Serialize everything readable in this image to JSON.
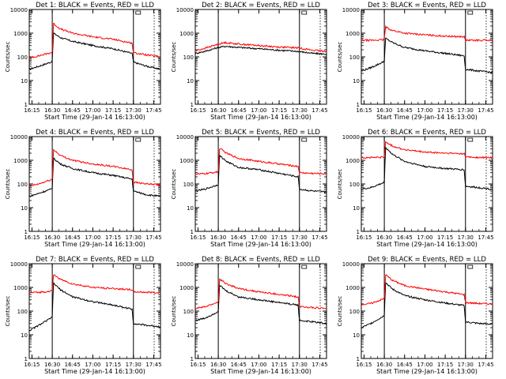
{
  "colors": {
    "events": "#000000",
    "lld": "#ff0000",
    "axes": "#000000",
    "background": "#ffffff"
  },
  "chart_data": [
    {
      "type": "line",
      "title": "Det 1: BLACK = Events, RED = LLD",
      "xlabel": "Start Time (29-Jan-14 16:13:00)",
      "ylabel": "Counts/sec",
      "x_ticks": [
        "16:15",
        "16:30",
        "16:45",
        "17:00",
        "17:15",
        "17:30",
        "17:45"
      ],
      "y_ticks": [
        "1",
        "10",
        "100",
        "1000",
        "10000"
      ],
      "ylim": [
        1,
        10000
      ],
      "yscale": "log",
      "grid": false,
      "vertical_markers": [
        "16:30",
        "17:30"
      ],
      "series": [
        {
          "name": "BLACK = Events",
          "color": "#000000",
          "x": [
            "16:13",
            "16:20",
            "16:29",
            "16:30",
            "16:31",
            "16:36",
            "16:45",
            "17:00",
            "17:15",
            "17:29",
            "17:30",
            "17:40",
            "17:50"
          ],
          "y": [
            30,
            40,
            60,
            70,
            1000,
            650,
            450,
            300,
            220,
            140,
            60,
            40,
            30
          ]
        },
        {
          "name": "RED = LLD",
          "color": "#ff0000",
          "x": [
            "16:13",
            "16:20",
            "16:29",
            "16:30",
            "16:31",
            "16:36",
            "16:45",
            "17:00",
            "17:15",
            "17:29",
            "17:30",
            "17:40",
            "17:50"
          ],
          "y": [
            90,
            110,
            150,
            160,
            2500,
            1500,
            1000,
            700,
            550,
            380,
            150,
            120,
            100
          ]
        }
      ]
    },
    {
      "type": "line",
      "title": "Det 2: BLACK = Events, RED = LLD",
      "xlabel": "Start Time (29-Jan-14 16:13:00)",
      "ylabel": "Counts/sec",
      "x_ticks": [
        "16:15",
        "16:30",
        "16:45",
        "17:00",
        "17:15",
        "17:30",
        "17:45"
      ],
      "y_ticks": [
        "1",
        "10",
        "100",
        "1000",
        "10000"
      ],
      "ylim": [
        1,
        10000
      ],
      "yscale": "log",
      "grid": false,
      "vertical_markers": [
        "16:30",
        "17:30"
      ],
      "series": [
        {
          "name": "BLACK = Events",
          "color": "#000000",
          "x": [
            "16:13",
            "16:20",
            "16:29",
            "16:35",
            "16:45",
            "17:00",
            "17:15",
            "17:29",
            "17:40",
            "17:50"
          ],
          "y": [
            140,
            170,
            240,
            280,
            250,
            220,
            190,
            170,
            140,
            130
          ]
        },
        {
          "name": "RED = LLD",
          "color": "#ff0000",
          "x": [
            "16:13",
            "16:20",
            "16:29",
            "16:35",
            "16:45",
            "17:00",
            "17:15",
            "17:29",
            "17:40",
            "17:50"
          ],
          "y": [
            180,
            230,
            330,
            400,
            350,
            300,
            260,
            240,
            190,
            170
          ]
        }
      ]
    },
    {
      "type": "line",
      "title": "Det 3: BLACK = Events, RED = LLD",
      "xlabel": "Start Time (29-Jan-14 16:13:00)",
      "ylabel": "Counts/sec",
      "x_ticks": [
        "16:15",
        "16:30",
        "16:45",
        "17:00",
        "17:15",
        "17:30",
        "17:45"
      ],
      "y_ticks": [
        "1",
        "10",
        "100",
        "1000",
        "10000"
      ],
      "ylim": [
        1,
        10000
      ],
      "yscale": "log",
      "grid": false,
      "vertical_markers": [
        "16:30",
        "17:30"
      ],
      "series": [
        {
          "name": "BLACK = Events",
          "color": "#000000",
          "x": [
            "16:13",
            "16:20",
            "16:29",
            "16:30",
            "16:31",
            "16:36",
            "16:45",
            "17:00",
            "17:15",
            "17:29",
            "17:30",
            "17:40",
            "17:50"
          ],
          "y": [
            25,
            35,
            60,
            70,
            600,
            400,
            250,
            180,
            140,
            110,
            30,
            25,
            22
          ]
        },
        {
          "name": "RED = LLD",
          "color": "#ff0000",
          "x": [
            "16:13",
            "16:20",
            "16:29",
            "16:30",
            "16:31",
            "16:36",
            "16:45",
            "17:00",
            "17:15",
            "17:29",
            "17:30",
            "17:40",
            "17:50"
          ],
          "y": [
            500,
            500,
            520,
            600,
            1800,
            1300,
            1000,
            850,
            750,
            700,
            500,
            500,
            500
          ]
        }
      ]
    },
    {
      "type": "line",
      "title": "Det 4: BLACK = Events, RED = LLD",
      "xlabel": "Start Time (29-Jan-14 16:13:00)",
      "ylabel": "Counts/sec",
      "x_ticks": [
        "16:15",
        "16:30",
        "16:45",
        "17:00",
        "17:15",
        "17:30",
        "17:45"
      ],
      "y_ticks": [
        "1",
        "10",
        "100",
        "1000",
        "10000"
      ],
      "ylim": [
        1,
        10000
      ],
      "yscale": "log",
      "grid": false,
      "vertical_markers": [
        "16:30",
        "17:30"
      ],
      "series": [
        {
          "name": "BLACK = Events",
          "color": "#000000",
          "x": [
            "16:13",
            "16:20",
            "16:29",
            "16:30",
            "16:31",
            "16:36",
            "16:45",
            "17:00",
            "17:15",
            "17:29",
            "17:30",
            "17:40",
            "17:50"
          ],
          "y": [
            30,
            40,
            60,
            70,
            1200,
            700,
            450,
            300,
            230,
            160,
            50,
            35,
            30
          ]
        },
        {
          "name": "RED = LLD",
          "color": "#ff0000",
          "x": [
            "16:13",
            "16:20",
            "16:29",
            "16:30",
            "16:31",
            "16:36",
            "16:45",
            "17:00",
            "17:15",
            "17:29",
            "17:30",
            "17:40",
            "17:50"
          ],
          "y": [
            80,
            100,
            150,
            160,
            2800,
            1600,
            1000,
            700,
            550,
            400,
            120,
            100,
            90
          ]
        }
      ]
    },
    {
      "type": "line",
      "title": "Det 5: BLACK = Events, RED = LLD",
      "xlabel": "Start Time (29-Jan-14 16:13:00)",
      "ylabel": "Counts/sec",
      "x_ticks": [
        "16:15",
        "16:30",
        "16:45",
        "17:00",
        "17:15",
        "17:30",
        "17:45"
      ],
      "y_ticks": [
        "1",
        "10",
        "100",
        "1000",
        "10000"
      ],
      "ylim": [
        1,
        10000
      ],
      "yscale": "log",
      "grid": false,
      "vertical_markers": [
        "16:30",
        "17:30"
      ],
      "series": [
        {
          "name": "BLACK = Events",
          "color": "#000000",
          "x": [
            "16:13",
            "16:20",
            "16:29",
            "16:30",
            "16:31",
            "16:36",
            "16:45",
            "17:00",
            "17:15",
            "17:29",
            "17:30",
            "17:40",
            "17:50"
          ],
          "y": [
            50,
            60,
            90,
            100,
            1600,
            900,
            500,
            400,
            280,
            200,
            60,
            50,
            45
          ]
        },
        {
          "name": "RED = LLD",
          "color": "#ff0000",
          "x": [
            "16:13",
            "16:20",
            "16:29",
            "16:30",
            "16:31",
            "16:36",
            "16:45",
            "17:00",
            "17:15",
            "17:29",
            "17:30",
            "17:40",
            "17:50"
          ],
          "y": [
            260,
            270,
            320,
            350,
            3200,
            2000,
            1200,
            900,
            700,
            550,
            300,
            280,
            270
          ]
        }
      ]
    },
    {
      "type": "line",
      "title": "Det 6: BLACK = Events, RED = LLD",
      "xlabel": "Start Time (29-Jan-14 16:13:00)",
      "ylabel": "Counts/sec",
      "x_ticks": [
        "16:15",
        "16:30",
        "16:45",
        "17:00",
        "17:15",
        "17:30",
        "17:45"
      ],
      "y_ticks": [
        "1",
        "10",
        "100",
        "1000",
        "10000"
      ],
      "ylim": [
        1,
        10000
      ],
      "yscale": "log",
      "grid": false,
      "vertical_markers": [
        "16:30",
        "17:30"
      ],
      "series": [
        {
          "name": "BLACK = Events",
          "color": "#000000",
          "x": [
            "16:13",
            "16:20",
            "16:29",
            "16:30",
            "16:31",
            "16:36",
            "16:45",
            "17:00",
            "17:15",
            "17:29",
            "17:30",
            "17:40",
            "17:50"
          ],
          "y": [
            60,
            70,
            110,
            120,
            3500,
            1800,
            900,
            550,
            450,
            400,
            80,
            70,
            60
          ]
        },
        {
          "name": "RED = LLD",
          "color": "#ff0000",
          "x": [
            "16:13",
            "16:20",
            "16:29",
            "16:30",
            "16:31",
            "16:36",
            "16:45",
            "17:00",
            "17:15",
            "17:29",
            "17:30",
            "17:40",
            "17:50"
          ],
          "y": [
            1300,
            1300,
            1350,
            1400,
            6000,
            4000,
            2800,
            2200,
            2000,
            1900,
            1400,
            1300,
            1300
          ]
        }
      ]
    },
    {
      "type": "line",
      "title": "Det 7: BLACK = Events, RED = LLD",
      "xlabel": "Start Time (29-Jan-14 16:13:00)",
      "ylabel": "Counts/sec",
      "x_ticks": [
        "16:15",
        "16:30",
        "16:45",
        "17:00",
        "17:15",
        "17:30",
        "17:45"
      ],
      "y_ticks": [
        "1",
        "10",
        "100",
        "1000",
        "10000"
      ],
      "ylim": [
        1,
        10000
      ],
      "yscale": "log",
      "grid": false,
      "vertical_markers": [
        "16:30",
        "17:30"
      ],
      "series": [
        {
          "name": "BLACK = Events",
          "color": "#000000",
          "x": [
            "16:13",
            "16:20",
            "16:29",
            "16:30",
            "16:31",
            "16:36",
            "16:45",
            "17:00",
            "17:15",
            "17:29",
            "17:30",
            "17:40",
            "17:50"
          ],
          "y": [
            15,
            25,
            50,
            60,
            1500,
            800,
            400,
            250,
            180,
            120,
            30,
            25,
            22
          ]
        },
        {
          "name": "RED = LLD",
          "color": "#ff0000",
          "x": [
            "16:13",
            "16:20",
            "16:29",
            "16:30",
            "16:31",
            "16:36",
            "16:45",
            "17:00",
            "17:15",
            "17:29",
            "17:30",
            "17:40",
            "17:50"
          ],
          "y": [
            600,
            620,
            700,
            750,
            3500,
            2200,
            1400,
            1000,
            900,
            800,
            650,
            620,
            600
          ]
        }
      ]
    },
    {
      "type": "line",
      "title": "Det 8: BLACK = Events, RED = LLD",
      "xlabel": "Start Time (29-Jan-14 16:13:00)",
      "ylabel": "Counts/sec",
      "x_ticks": [
        "16:15",
        "16:30",
        "16:45",
        "17:00",
        "17:15",
        "17:30",
        "17:45"
      ],
      "y_ticks": [
        "1",
        "10",
        "100",
        "1000",
        "10000"
      ],
      "ylim": [
        1,
        10000
      ],
      "yscale": "log",
      "grid": false,
      "vertical_markers": [
        "16:30",
        "17:30"
      ],
      "series": [
        {
          "name": "BLACK = Events",
          "color": "#000000",
          "x": [
            "16:13",
            "16:20",
            "16:29",
            "16:30",
            "16:31",
            "16:36",
            "16:45",
            "17:00",
            "17:15",
            "17:29",
            "17:30",
            "17:40",
            "17:50"
          ],
          "y": [
            40,
            50,
            90,
            100,
            1200,
            700,
            400,
            300,
            230,
            180,
            40,
            35,
            30
          ]
        },
        {
          "name": "RED = LLD",
          "color": "#ff0000",
          "x": [
            "16:13",
            "16:20",
            "16:29",
            "16:30",
            "16:31",
            "16:36",
            "16:45",
            "17:00",
            "17:15",
            "17:29",
            "17:30",
            "17:40",
            "17:50"
          ],
          "y": [
            130,
            150,
            230,
            250,
            2200,
            1400,
            900,
            650,
            500,
            400,
            160,
            140,
            130
          ]
        }
      ]
    },
    {
      "type": "line",
      "title": "Det 9: BLACK = Events, RED = LLD",
      "xlabel": "Start Time (29-Jan-14 16:13:00)",
      "ylabel": "Counts/sec",
      "x_ticks": [
        "16:15",
        "16:30",
        "16:45",
        "17:00",
        "17:15",
        "17:30",
        "17:45"
      ],
      "y_ticks": [
        "1",
        "10",
        "100",
        "1000",
        "10000"
      ],
      "ylim": [
        1,
        10000
      ],
      "yscale": "log",
      "grid": false,
      "vertical_markers": [
        "16:30",
        "17:30"
      ],
      "series": [
        {
          "name": "BLACK = Events",
          "color": "#000000",
          "x": [
            "16:13",
            "16:20",
            "16:29",
            "16:30",
            "16:31",
            "16:36",
            "16:45",
            "17:00",
            "17:15",
            "17:29",
            "17:30",
            "17:40",
            "17:50"
          ],
          "y": [
            20,
            30,
            60,
            70,
            1600,
            850,
            450,
            300,
            220,
            170,
            35,
            30,
            28
          ]
        },
        {
          "name": "RED = LLD",
          "color": "#ff0000",
          "x": [
            "16:13",
            "16:20",
            "16:29",
            "16:30",
            "16:31",
            "16:36",
            "16:45",
            "17:00",
            "17:15",
            "17:29",
            "17:30",
            "17:40",
            "17:50"
          ],
          "y": [
            190,
            210,
            320,
            350,
            3400,
            2000,
            1200,
            850,
            650,
            500,
            230,
            210,
            200
          ]
        }
      ]
    }
  ]
}
